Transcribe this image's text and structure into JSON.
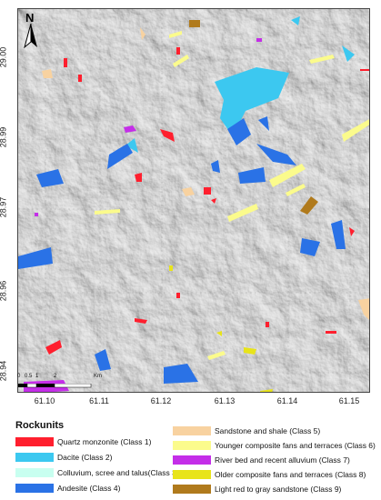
{
  "map": {
    "north_label": "N",
    "x_ticks": [
      "61.10",
      "61.11",
      "61.12",
      "61.13",
      "61.14",
      "61.15"
    ],
    "y_ticks": [
      "29.00",
      "28.99",
      "28.97",
      "28.96",
      "28.94"
    ],
    "scale": {
      "ticks": [
        "0",
        "0.5",
        "1",
        "2"
      ],
      "unit": "Km"
    }
  },
  "legend": {
    "title": "Rockunits",
    "items": [
      {
        "label": "Quartz monzonite (Class 1)",
        "color": "#ff1f2e"
      },
      {
        "label": "Dacite (Class 2)",
        "color": "#3cc8f0"
      },
      {
        "label": "Colluvium, scree and talus(Class 3)",
        "color": "#c8fff0"
      },
      {
        "label": "Andesite (Class 4)",
        "color": "#2a72e6"
      },
      {
        "label": "Sandstone and shale (Class 5)",
        "color": "#f8d2a0"
      },
      {
        "label": "Younger composite fans and terraces (Class 6)",
        "color": "#fbfb8c"
      },
      {
        "label": "River bed and recent alluvium (Class 7)",
        "color": "#c42ee8"
      },
      {
        "label": "Older composite fans and terraces  (Class 8)",
        "color": "#e8e41a"
      },
      {
        "label": "Light  red to gray sandstone (Class 9)",
        "color": "#b07a1c"
      }
    ]
  }
}
